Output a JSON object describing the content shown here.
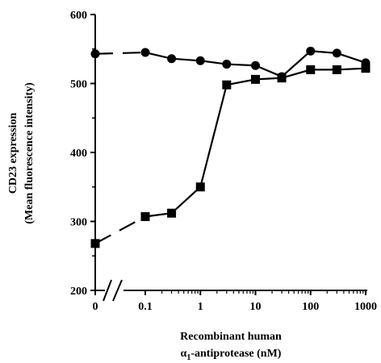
{
  "chart_data": {
    "type": "line",
    "title": "",
    "xlabel": "Recombinant human α1-antiprotease (nM)",
    "xlabel_line1": "Recombinant human",
    "xlabel_line2_prefix": "α",
    "xlabel_line2_sub": "1",
    "xlabel_line2_suffix": "-antiprotease (nM)",
    "ylabel": "CD23 expression (Mean fluorescence intensity)",
    "ylabel_line1": "CD23 expression",
    "ylabel_line2": "(Mean fluorescence intensity)",
    "x_scale": "log with broken axis at 0",
    "x_ticks": [
      0,
      0.1,
      1,
      10,
      100,
      1000
    ],
    "x_tick_labels": [
      "0",
      "0.1",
      "1",
      "10",
      "100",
      "1000"
    ],
    "ylim": [
      200,
      600
    ],
    "y_ticks": [
      200,
      300,
      400,
      500,
      600
    ],
    "y_tick_labels": [
      "200",
      "300",
      "400",
      "500",
      "600"
    ],
    "grid": false,
    "series": [
      {
        "marker": "circle",
        "color": "#000000",
        "x": [
          0,
          0.1,
          0.3,
          1,
          3,
          10,
          30,
          100,
          300,
          1000
        ],
        "y": [
          543,
          545,
          536,
          533,
          528,
          526,
          510,
          547,
          544,
          530
        ]
      },
      {
        "marker": "square",
        "color": "#000000",
        "x": [
          0,
          0.1,
          0.3,
          1,
          3,
          10,
          30,
          100,
          300,
          1000
        ],
        "y": [
          268,
          307,
          312,
          350,
          498,
          506,
          508,
          520,
          520,
          522
        ]
      }
    ]
  }
}
